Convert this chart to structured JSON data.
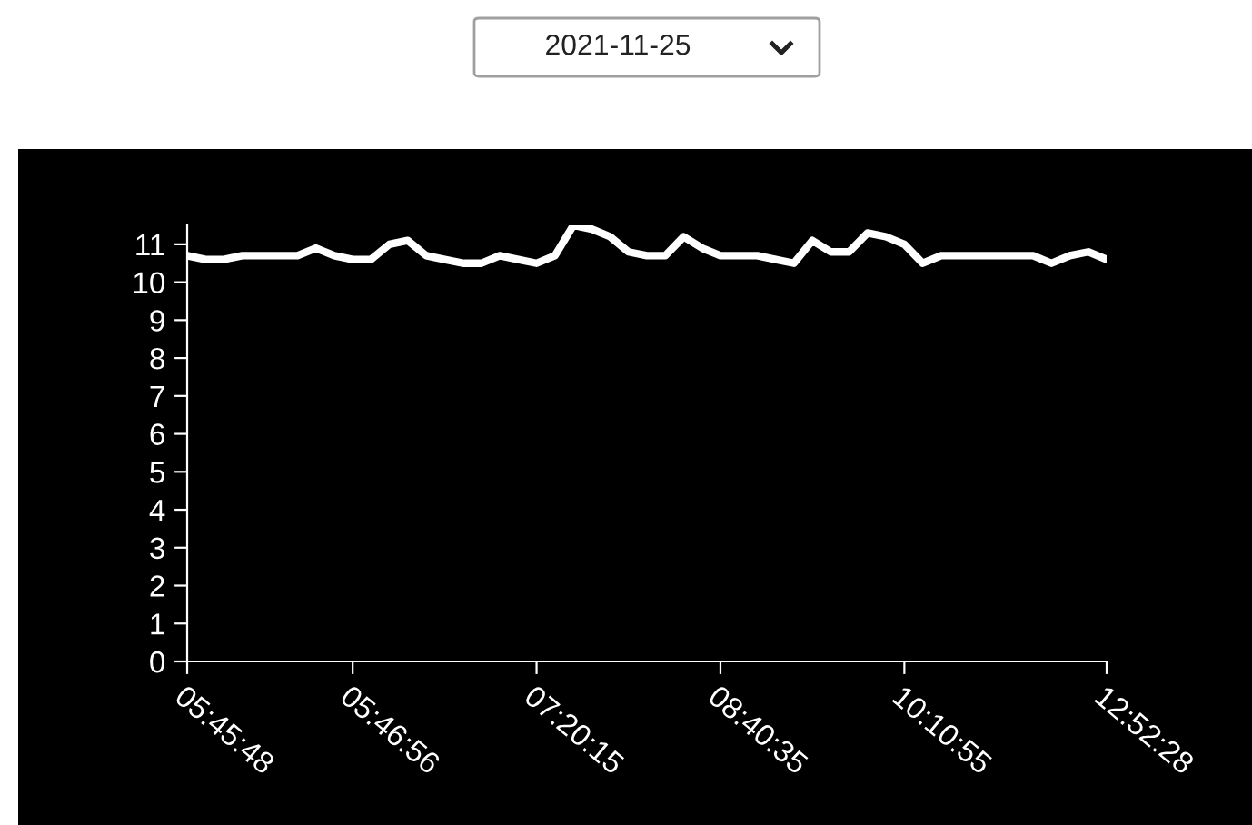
{
  "chart_data": {
    "type": "line",
    "annotations": [
      "2021-11-25"
    ],
    "categories": [
      "05:45:48",
      null,
      null,
      null,
      null,
      null,
      null,
      null,
      null,
      "05:46:56",
      null,
      null,
      null,
      null,
      null,
      null,
      null,
      null,
      null,
      "07:20:15",
      null,
      null,
      null,
      null,
      null,
      null,
      null,
      null,
      null,
      "08:40:35",
      null,
      null,
      null,
      null,
      null,
      null,
      null,
      null,
      null,
      "10:10:55",
      null,
      null,
      null,
      null,
      null,
      null,
      null,
      null,
      null,
      null,
      "12:52:28"
    ],
    "series": [
      {
        "color": "#ffffff",
        "values": [
          10.7,
          10.6,
          10.6,
          10.7,
          10.7,
          10.7,
          10.7,
          10.9,
          10.7,
          10.6,
          10.6,
          11.0,
          11.1,
          10.7,
          10.6,
          10.5,
          10.5,
          10.7,
          10.6,
          10.5,
          10.7,
          11.5,
          11.4,
          11.2,
          10.8,
          10.7,
          10.7,
          11.2,
          10.9,
          10.7,
          10.7,
          10.7,
          10.6,
          10.5,
          11.1,
          10.8,
          10.8,
          11.3,
          11.2,
          11.0,
          10.5,
          10.7,
          10.7,
          10.7,
          10.7,
          10.7,
          10.7,
          10.5,
          10.7,
          10.8,
          10.6
        ]
      }
    ],
    "ylim": [
      0,
      11.5
    ],
    "yticks": [
      0,
      1,
      2,
      3,
      4,
      5,
      6,
      7,
      8,
      9,
      10,
      11
    ],
    "grid": false,
    "marker": "none",
    "line_style": "solid"
  }
}
